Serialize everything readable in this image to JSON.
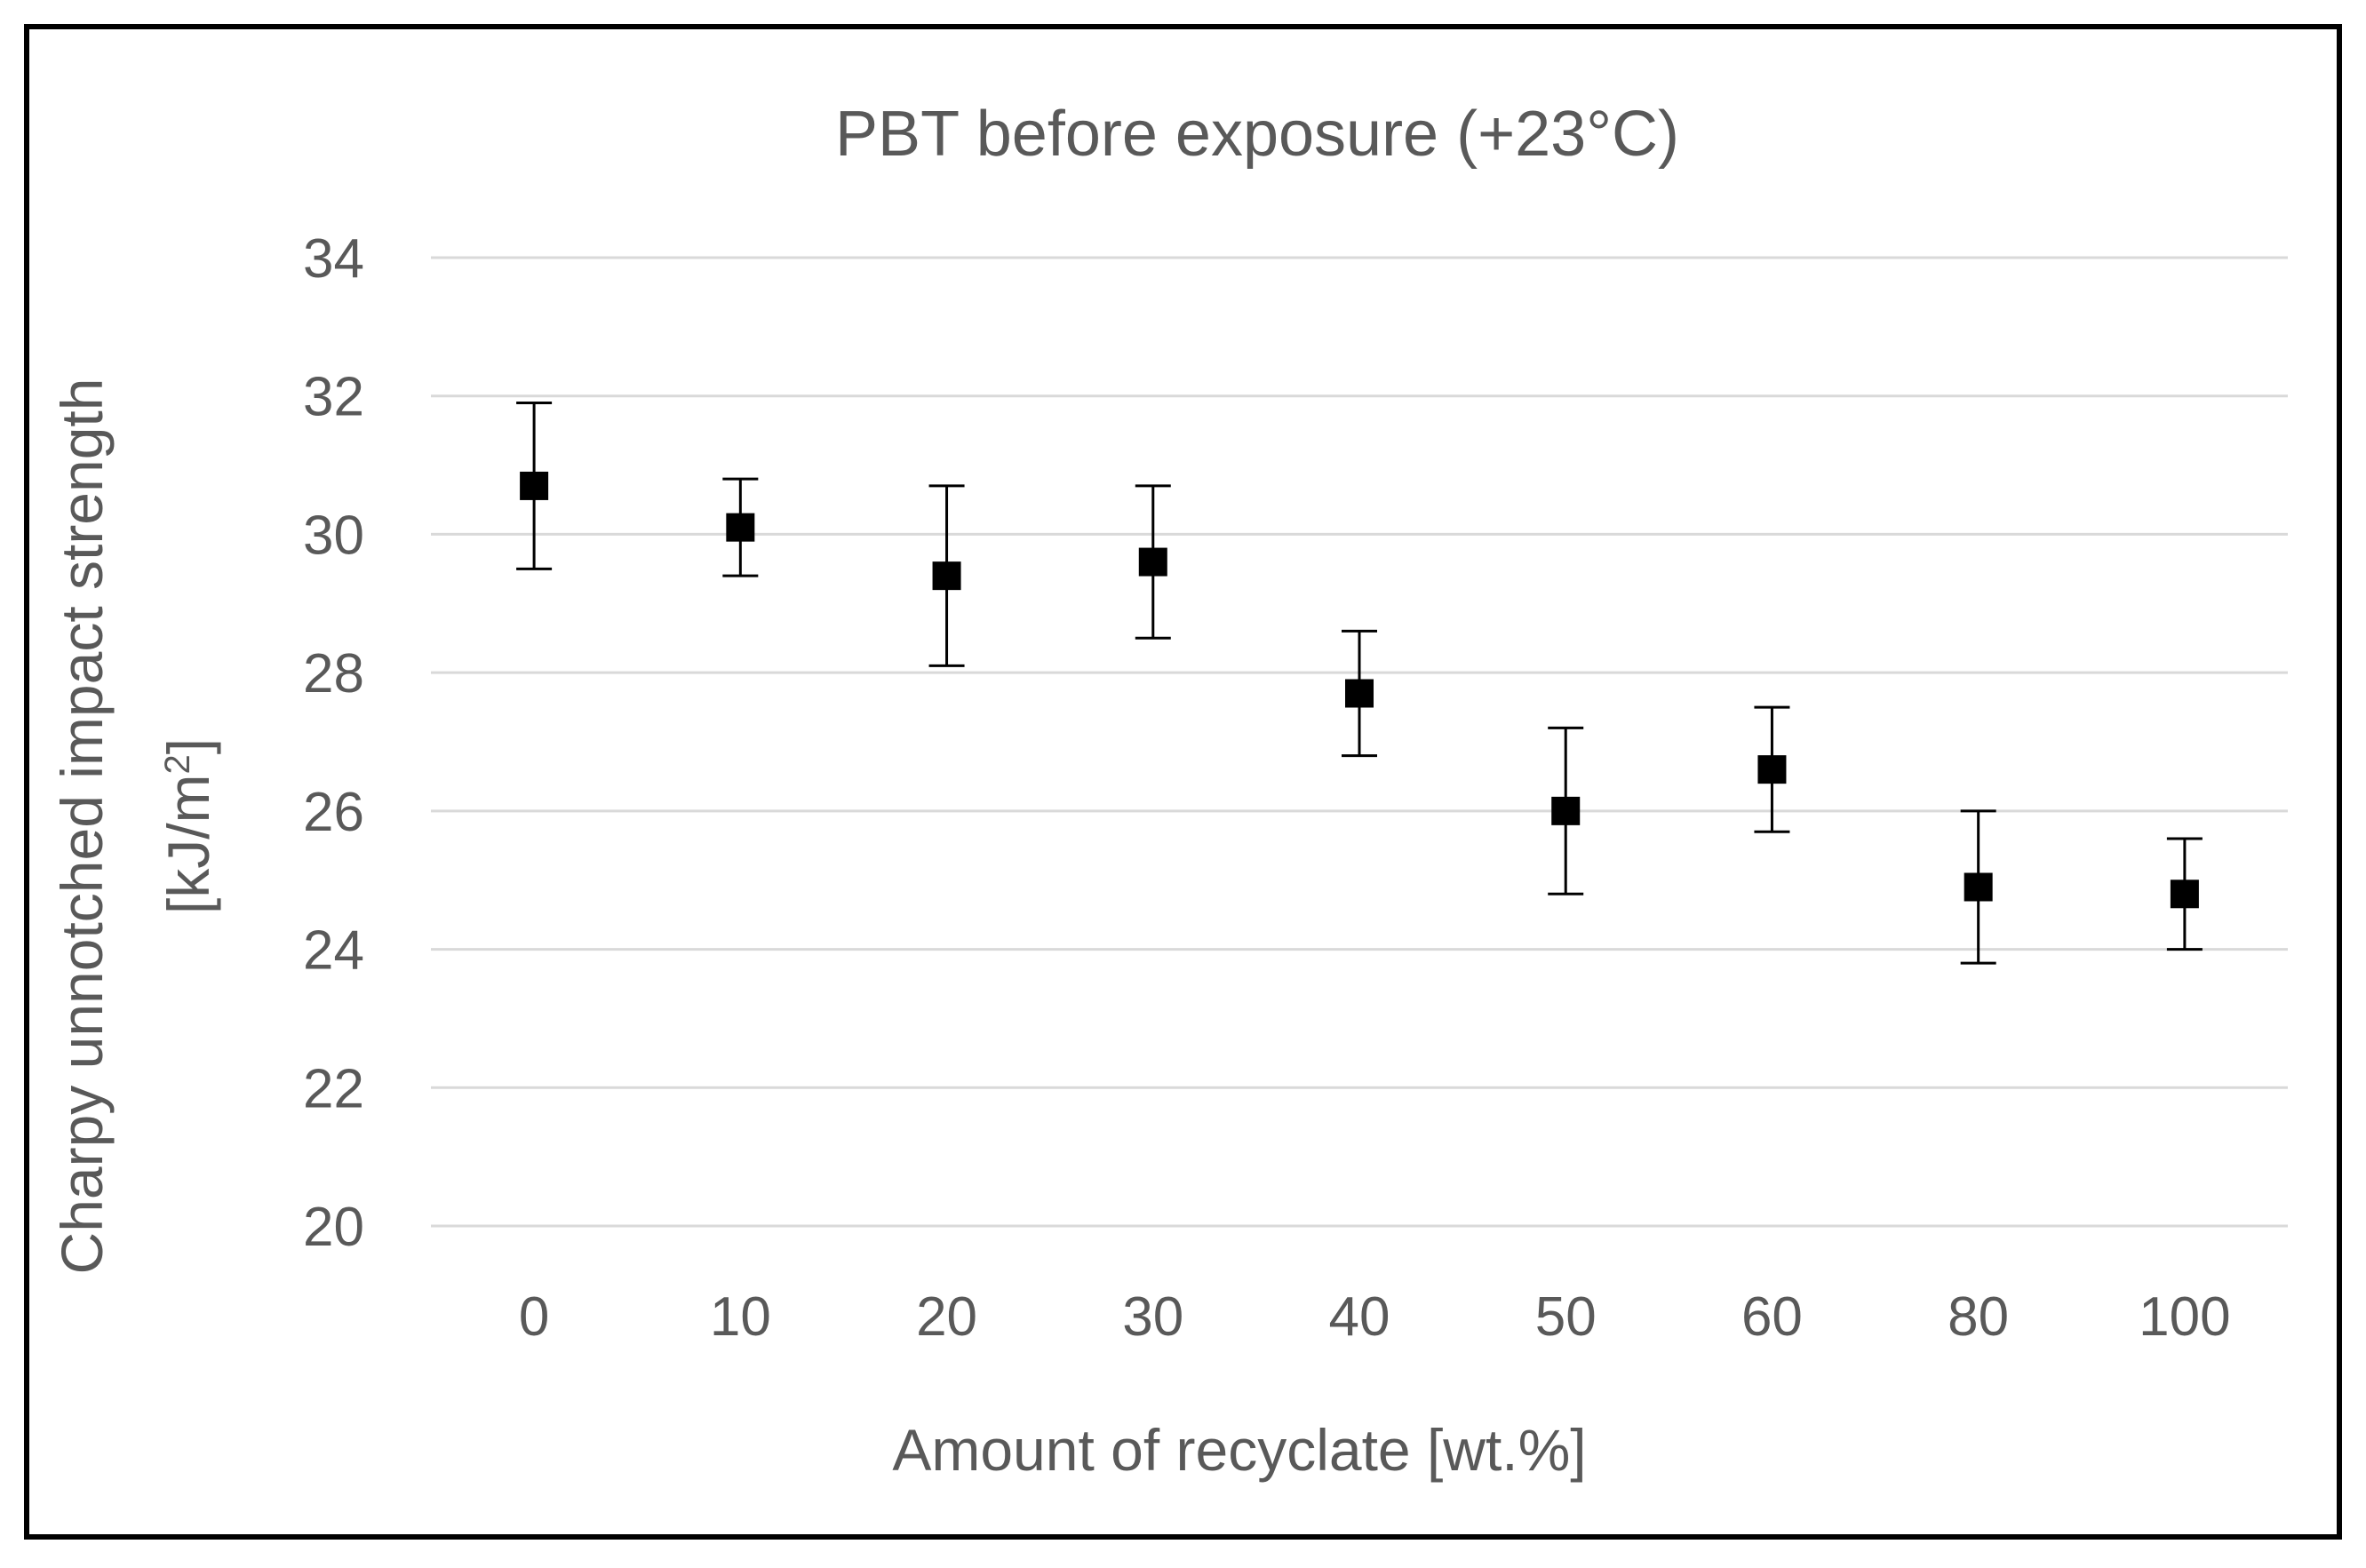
{
  "chart_data": {
    "type": "scatter",
    "title": "PBT before exposure (+23°C)",
    "xlabel": "Amount of recyclate [wt.%]",
    "ylabel_line1": "Charpy unnotched impact strength",
    "ylabel_line2_prefix": "[kJ/m",
    "ylabel_line2_sup": "2",
    "ylabel_line2_suffix": "]",
    "categories": [
      "0",
      "10",
      "20",
      "30",
      "40",
      "50",
      "60",
      "80",
      "100"
    ],
    "series": [
      {
        "name": "PBT before exposure",
        "values": [
          30.7,
          30.1,
          29.4,
          29.6,
          27.7,
          26.0,
          26.6,
          24.9,
          24.8
        ],
        "error_low": [
          29.5,
          29.4,
          28.1,
          28.5,
          26.8,
          24.8,
          25.7,
          23.8,
          24.0
        ],
        "error_high": [
          31.9,
          30.8,
          30.7,
          30.7,
          28.6,
          27.2,
          27.5,
          26.0,
          25.6
        ],
        "marker": "square",
        "color": "#000000"
      }
    ],
    "ylim": [
      20,
      34
    ],
    "yticks": [
      "20",
      "22",
      "24",
      "26",
      "28",
      "30",
      "32",
      "34"
    ],
    "grid": true,
    "gridline_color": "#d9d9d9",
    "legend": "none"
  }
}
